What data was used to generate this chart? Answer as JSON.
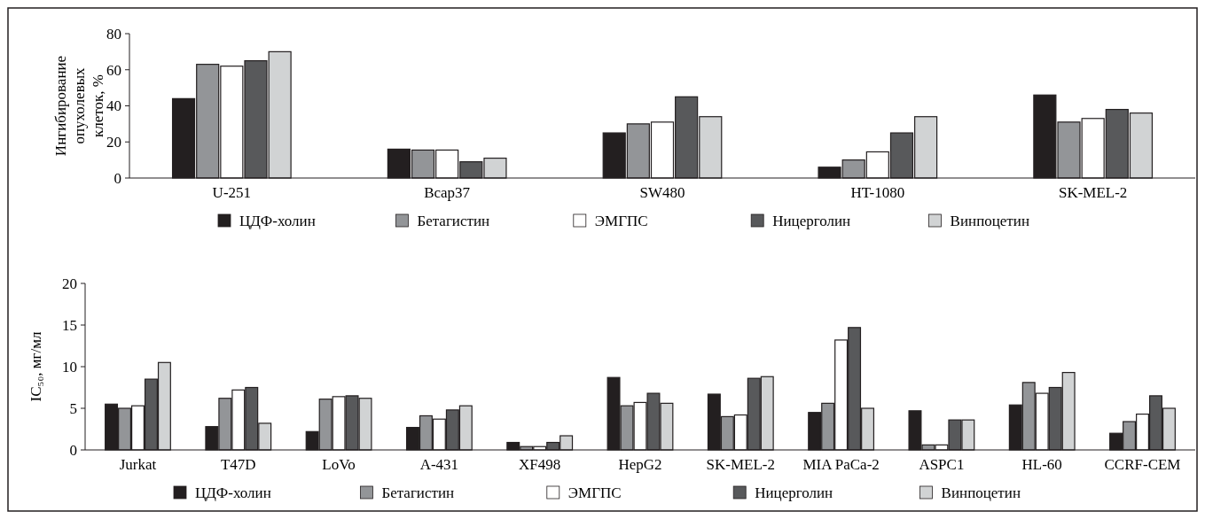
{
  "chart_data": [
    {
      "type": "bar",
      "ylabel": "Ингибирование опухолевых клеток, %",
      "categories": [
        "U-251",
        "Bcap37",
        "SW480",
        "HT-1080",
        "SK-MEL-2"
      ],
      "ylim": [
        0,
        80
      ],
      "yticks": [
        0,
        20,
        40,
        60,
        80
      ],
      "legend": "bottom",
      "grid": false,
      "series": [
        {
          "name": "ЦДФ-холин",
          "color": "#231f20",
          "values": [
            44,
            16,
            25,
            6,
            46
          ]
        },
        {
          "name": "Бетагистин",
          "color": "#939598",
          "values": [
            63,
            15.5,
            30,
            10,
            31
          ]
        },
        {
          "name": "ЭМГПС",
          "color": "#ffffff",
          "values": [
            62,
            15.5,
            31,
            14.5,
            33
          ]
        },
        {
          "name": "Ницерголин",
          "color": "#58595b",
          "values": [
            65,
            9,
            45,
            25,
            38
          ]
        },
        {
          "name": "Винпоцетин",
          "color": "#d1d3d4",
          "values": [
            70,
            11,
            34,
            34,
            36
          ]
        }
      ]
    },
    {
      "type": "bar",
      "ylabel": "IC₅₀, мг/мл",
      "categories": [
        "Jurkat",
        "T47D",
        "LoVo",
        "A-431",
        "XF498",
        "HepG2",
        "SK-MEL-2",
        "MIA PaCa-2",
        "ASPC1",
        "HL-60",
        "CCRF-CEM"
      ],
      "ylim": [
        0,
        20
      ],
      "yticks": [
        0,
        5,
        10,
        15,
        20
      ],
      "legend": "bottom",
      "grid": false,
      "series": [
        {
          "name": "ЦДФ-холин",
          "color": "#231f20",
          "values": [
            5.5,
            2.8,
            2.2,
            2.7,
            0.9,
            8.7,
            6.7,
            4.5,
            4.7,
            5.4,
            2.0
          ]
        },
        {
          "name": "Бетагистин",
          "color": "#939598",
          "values": [
            5.0,
            6.2,
            6.1,
            4.1,
            0.4,
            5.3,
            4.0,
            5.6,
            0.6,
            8.1,
            3.4
          ]
        },
        {
          "name": "ЭМГПС",
          "color": "#ffffff",
          "values": [
            5.3,
            7.2,
            6.4,
            3.7,
            0.4,
            5.7,
            4.2,
            13.2,
            0.6,
            6.8,
            4.3
          ]
        },
        {
          "name": "Ницерголин",
          "color": "#58595b",
          "values": [
            8.5,
            7.5,
            6.5,
            4.8,
            0.9,
            6.8,
            8.6,
            14.7,
            3.6,
            7.5,
            6.5
          ]
        },
        {
          "name": "Винпоцетин",
          "color": "#d1d3d4",
          "values": [
            10.5,
            3.2,
            6.2,
            5.3,
            1.7,
            5.6,
            8.8,
            5.0,
            3.6,
            9.3,
            5.0
          ]
        }
      ]
    }
  ]
}
